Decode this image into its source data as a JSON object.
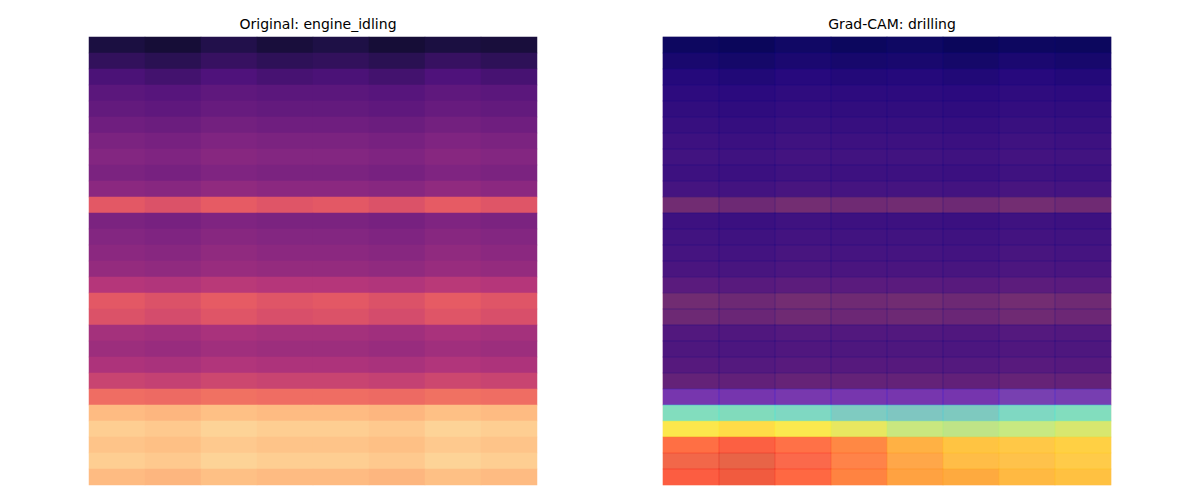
{
  "chart_data": [
    {
      "type": "heatmap",
      "title": "Original: engine_idling",
      "tick_labels": false,
      "color_range": [
        0,
        1
      ],
      "values": [
        [
          0.12,
          0.1,
          0.14,
          0.11,
          0.13,
          0.1,
          0.12,
          0.11
        ],
        [
          0.18,
          0.16,
          0.19,
          0.17,
          0.18,
          0.16,
          0.19,
          0.17
        ],
        [
          0.24,
          0.22,
          0.25,
          0.23,
          0.24,
          0.22,
          0.25,
          0.23
        ],
        [
          0.28,
          0.27,
          0.29,
          0.28,
          0.28,
          0.27,
          0.29,
          0.28
        ],
        [
          0.3,
          0.29,
          0.31,
          0.3,
          0.3,
          0.29,
          0.31,
          0.3
        ],
        [
          0.33,
          0.32,
          0.34,
          0.33,
          0.33,
          0.32,
          0.34,
          0.33
        ],
        [
          0.36,
          0.35,
          0.37,
          0.36,
          0.36,
          0.35,
          0.37,
          0.36
        ],
        [
          0.38,
          0.37,
          0.39,
          0.38,
          0.38,
          0.37,
          0.39,
          0.38
        ],
        [
          0.36,
          0.35,
          0.37,
          0.36,
          0.36,
          0.35,
          0.37,
          0.36
        ],
        [
          0.4,
          0.39,
          0.41,
          0.4,
          0.4,
          0.39,
          0.41,
          0.4
        ],
        [
          0.62,
          0.6,
          0.63,
          0.61,
          0.62,
          0.6,
          0.63,
          0.61
        ],
        [
          0.36,
          0.35,
          0.37,
          0.36,
          0.36,
          0.35,
          0.37,
          0.36
        ],
        [
          0.38,
          0.37,
          0.39,
          0.38,
          0.38,
          0.37,
          0.39,
          0.38
        ],
        [
          0.4,
          0.39,
          0.41,
          0.4,
          0.4,
          0.39,
          0.41,
          0.4
        ],
        [
          0.42,
          0.41,
          0.43,
          0.42,
          0.42,
          0.41,
          0.43,
          0.42
        ],
        [
          0.5,
          0.49,
          0.51,
          0.5,
          0.5,
          0.49,
          0.51,
          0.5
        ],
        [
          0.62,
          0.6,
          0.63,
          0.61,
          0.62,
          0.6,
          0.63,
          0.61
        ],
        [
          0.6,
          0.58,
          0.61,
          0.59,
          0.6,
          0.58,
          0.61,
          0.59
        ],
        [
          0.46,
          0.45,
          0.47,
          0.46,
          0.46,
          0.45,
          0.47,
          0.46
        ],
        [
          0.44,
          0.43,
          0.45,
          0.44,
          0.44,
          0.43,
          0.45,
          0.44
        ],
        [
          0.48,
          0.47,
          0.49,
          0.48,
          0.48,
          0.47,
          0.49,
          0.48
        ],
        [
          0.55,
          0.54,
          0.56,
          0.55,
          0.55,
          0.54,
          0.56,
          0.55
        ],
        [
          0.68,
          0.67,
          0.69,
          0.68,
          0.68,
          0.67,
          0.69,
          0.68
        ],
        [
          0.86,
          0.85,
          0.87,
          0.86,
          0.86,
          0.85,
          0.87,
          0.86
        ],
        [
          0.9,
          0.89,
          0.91,
          0.9,
          0.9,
          0.89,
          0.91,
          0.9
        ],
        [
          0.88,
          0.87,
          0.89,
          0.88,
          0.88,
          0.87,
          0.89,
          0.88
        ],
        [
          0.9,
          0.89,
          0.91,
          0.9,
          0.9,
          0.89,
          0.91,
          0.9
        ],
        [
          0.86,
          0.85,
          0.87,
          0.86,
          0.86,
          0.85,
          0.87,
          0.86
        ]
      ]
    },
    {
      "type": "heatmap",
      "title": "Grad-CAM: drilling",
      "tick_labels": false,
      "color_range": [
        0,
        1
      ],
      "values": [
        [
          0,
          0,
          0,
          0,
          0,
          0,
          0,
          0
        ],
        [
          0,
          0,
          0,
          0,
          0,
          0,
          0,
          0
        ],
        [
          0,
          0,
          0,
          0,
          0,
          0,
          0,
          0
        ],
        [
          0,
          0,
          0,
          0,
          0,
          0,
          0,
          0
        ],
        [
          0,
          0,
          0,
          0,
          0,
          0,
          0,
          0
        ],
        [
          0,
          0,
          0,
          0,
          0,
          0,
          0,
          0
        ],
        [
          0,
          0,
          0,
          0,
          0,
          0,
          0,
          0
        ],
        [
          0,
          0,
          0,
          0,
          0,
          0,
          0,
          0
        ],
        [
          0,
          0,
          0,
          0,
          0,
          0,
          0,
          0
        ],
        [
          0,
          0,
          0,
          0,
          0,
          0,
          0,
          0
        ],
        [
          0,
          0,
          0,
          0,
          0,
          0,
          0,
          0
        ],
        [
          0,
          0,
          0,
          0,
          0,
          0,
          0,
          0
        ],
        [
          0,
          0,
          0,
          0,
          0,
          0,
          0,
          0
        ],
        [
          0,
          0,
          0,
          0,
          0,
          0,
          0,
          0
        ],
        [
          0,
          0,
          0,
          0,
          0,
          0,
          0,
          0
        ],
        [
          0,
          0,
          0,
          0,
          0,
          0,
          0,
          0
        ],
        [
          0,
          0,
          0,
          0,
          0,
          0,
          0,
          0
        ],
        [
          0,
          0,
          0,
          0,
          0,
          0,
          0,
          0
        ],
        [
          0,
          0,
          0,
          0,
          0,
          0,
          0,
          0
        ],
        [
          0,
          0,
          0,
          0,
          0,
          0,
          0,
          0
        ],
        [
          0,
          0,
          0,
          0,
          0,
          0,
          0,
          0
        ],
        [
          0,
          0,
          0,
          0,
          0,
          0,
          0,
          0
        ],
        [
          0.12,
          0.12,
          0.12,
          0.12,
          0.12,
          0.12,
          0.14,
          0.14
        ],
        [
          0.38,
          0.38,
          0.36,
          0.34,
          0.33,
          0.34,
          0.36,
          0.38
        ],
        [
          0.62,
          0.64,
          0.62,
          0.58,
          0.52,
          0.5,
          0.52,
          0.55
        ],
        [
          0.85,
          0.88,
          0.85,
          0.8,
          0.72,
          0.68,
          0.68,
          0.66
        ],
        [
          0.9,
          0.92,
          0.88,
          0.82,
          0.75,
          0.7,
          0.7,
          0.68
        ],
        [
          0.88,
          0.9,
          0.86,
          0.8,
          0.74,
          0.72,
          0.7,
          0.68
        ]
      ]
    }
  ]
}
